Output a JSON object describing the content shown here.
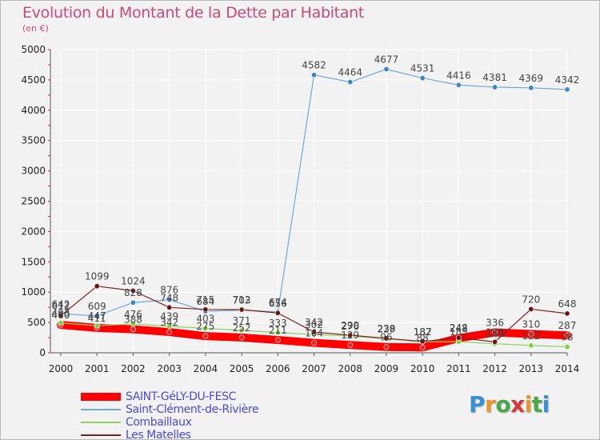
{
  "header": {
    "title": "Evolution du Montant de la Dette par Habitant",
    "unit": "(en €)"
  },
  "logo": {
    "text": "Proxiti",
    "letters": [
      "P",
      "r",
      "o",
      "x",
      "i",
      "t",
      "i"
    ],
    "colors": [
      "#3d8fd6",
      "#e8962e",
      "#4aa84a",
      "#d23a3a",
      "#e8962e",
      "#4aa84a",
      "#3d8fd6"
    ]
  },
  "colors": {
    "background": "#f2f2f2",
    "grid": "#ffffff",
    "axis": "#555555",
    "tick_text": "#222222",
    "label_text": "#444444"
  },
  "chart_data": {
    "type": "line",
    "title": "Evolution du Montant de la Dette par Habitant",
    "ylabel": "(en €)",
    "xlabel": "",
    "ylim": [
      0,
      5000
    ],
    "yticks": [
      0,
      500,
      1000,
      1500,
      2000,
      2500,
      3000,
      3500,
      4000,
      4500,
      5000
    ],
    "x": [
      "2000",
      "2001",
      "2002",
      "2003",
      "2004",
      "2005",
      "2006",
      "2007",
      "2008",
      "2009",
      "2010",
      "2011",
      "2012",
      "2013",
      "2014"
    ],
    "legend_position": "bottom-left",
    "grid": true,
    "series": [
      {
        "name": "SAINT-GéLY-DU-FESC",
        "color": "#ff0000",
        "width": 10,
        "marker": "#ee2222",
        "values": [
          460,
          411,
          388,
          342,
          275,
          252,
          211,
          164,
          129,
          96,
          88,
          242,
          336,
          310,
          287
        ],
        "labels": [
          "460",
          "411",
          "388",
          "342",
          "275",
          "252",
          "211",
          "164",
          "129",
          "96",
          "88",
          "242",
          "336",
          "310",
          "287"
        ]
      },
      {
        "name": "Saint-Clément-de-Rivière",
        "color": "#6fa8dc",
        "width": 1.2,
        "marker": "#3d85c6",
        "values": [
          642,
          609,
          828,
          876,
          684,
          703,
          674,
          4582,
          4464,
          4677,
          4531,
          4416,
          4381,
          4369,
          4342
        ],
        "labels": [
          "642",
          "609",
          "828",
          "876",
          "684",
          "703",
          "674",
          "4582",
          "4464",
          "4677",
          "4531",
          "4416",
          "4381",
          "4369",
          "4342"
        ]
      },
      {
        "name": "Combaillaux",
        "color": "#90d060",
        "width": 1.2,
        "marker": "#80d040",
        "values": [
          493,
          447,
          476,
          439,
          403,
          371,
          333,
          302,
          276,
          229,
          182,
          183,
          149,
          122,
          98
        ],
        "labels": [
          "493",
          "447",
          "476",
          "439",
          "403",
          "371",
          "333",
          "302",
          "276",
          "229",
          "182",
          "183",
          "149",
          "122",
          "98"
        ]
      },
      {
        "name": "Les Matelles",
        "color": "#7a2020",
        "width": 1.2,
        "marker": "#6b1515",
        "values": [
          612,
          1099,
          1024,
          748,
          715,
          712,
          656,
          342,
          290,
          238,
          187,
          248,
          180,
          720,
          648
        ],
        "labels": [
          "612",
          "1099",
          "1024",
          "748",
          "715",
          "712",
          "656",
          "342",
          "290",
          "238",
          "187",
          "248",
          "180",
          "720",
          "648"
        ]
      }
    ]
  }
}
